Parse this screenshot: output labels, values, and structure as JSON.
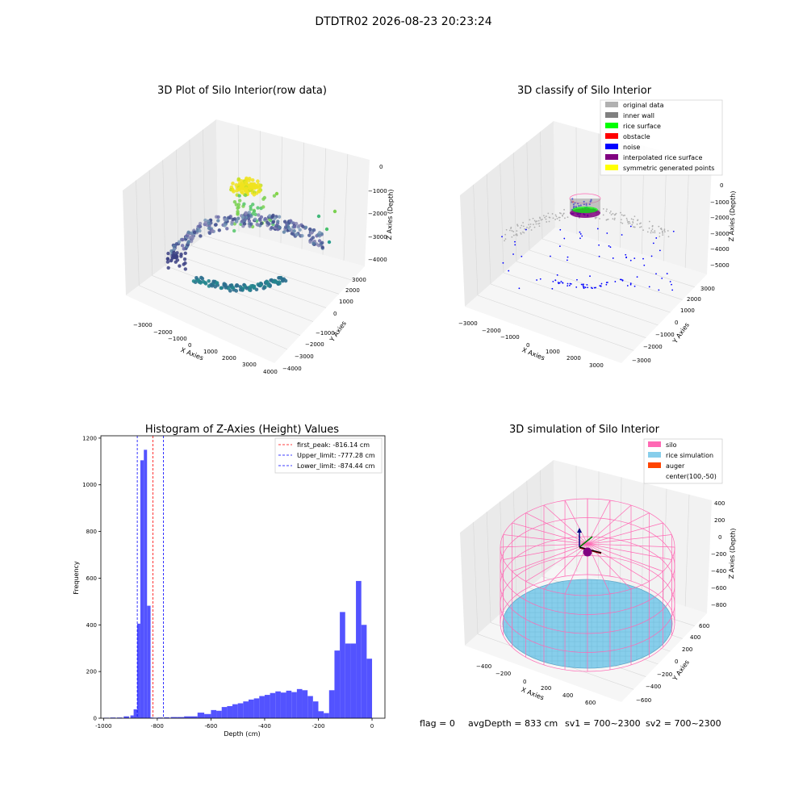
{
  "suptitle": "DTDTR02 2026-08-23 20:23:24",
  "footer": {
    "flag": "flag = 0",
    "avg_depth": "avgDepth = 833 cm",
    "sv1": "sv1 = 700~2300",
    "sv2": "sv2 = 700~2300"
  },
  "chart_data": [
    {
      "type": "scatter",
      "title": "3D Plot of Silo Interior(row data)",
      "xlabel": "X Axies",
      "ylabel": "Y Axies",
      "zlabel": "Z Axies (Depth)",
      "x_ticks": [
        "−3000",
        "−2000",
        "−1000",
        "0",
        "1000",
        "2000",
        "3000",
        "4000"
      ],
      "y_ticks": [
        "−4000",
        "−3000",
        "−2000",
        "−1000",
        "0",
        "1000",
        "2000",
        "3000"
      ],
      "z_ticks": [
        "0",
        "−1000",
        "−2000",
        "−3000",
        "−4000"
      ],
      "colormap": [
        "#fde725",
        "#7ad151",
        "#22a884",
        "#2a788e",
        "#414487",
        "#440154"
      ],
      "groups": [
        {
          "desc": "surface cluster",
          "z_range": [
            -900,
            -300
          ],
          "color": "#e6e11a"
        },
        {
          "desc": "falling points",
          "z_range": [
            -2200,
            -1000
          ],
          "color": "#86d549"
        },
        {
          "desc": "wall arc",
          "z_range": [
            -3200,
            -2400
          ],
          "color": "#7d7fb0"
        },
        {
          "desc": "bottom ring",
          "z_range": [
            -4400,
            -3800
          ],
          "color": "#2c6f8e"
        }
      ]
    },
    {
      "type": "scatter",
      "title": "3D classify of Silo Interior",
      "xlabel": "X Axies",
      "ylabel": "Y Axies",
      "zlabel": "Z Axies (Depth)",
      "x_ticks": [
        "−3000",
        "−2000",
        "−1000",
        "0",
        "1000",
        "2000",
        "3000"
      ],
      "y_ticks": [
        "−3000",
        "−2000",
        "−1000",
        "0",
        "1000",
        "2000",
        "3000"
      ],
      "z_ticks": [
        "0",
        "−1000",
        "−2000",
        "−3000",
        "−4000",
        "−5000"
      ],
      "legend": [
        {
          "label": "original data",
          "color": "#b0b0b0"
        },
        {
          "label": "inner wall",
          "color": "#808080"
        },
        {
          "label": "rice surface",
          "color": "#00ff00"
        },
        {
          "label": "obstacle",
          "color": "#ff0000"
        },
        {
          "label": "noise",
          "color": "#0000ff"
        },
        {
          "label": "interpolated rice surface",
          "color": "#800080"
        },
        {
          "label": "symmetric generated points",
          "color": "#ffff00"
        }
      ],
      "legend_location": "upper right"
    },
    {
      "type": "bar",
      "title": "Histogram of Z-Axies (Height) Values",
      "xlabel": "Depth (cm)",
      "ylabel": "Frequency",
      "xlim": [
        -1010,
        48
      ],
      "ylim": [
        0,
        1210
      ],
      "x_ticks": [
        -1000,
        -800,
        -600,
        -400,
        -200,
        0
      ],
      "y_ticks": [
        0,
        200,
        400,
        600,
        800,
        1000,
        1200
      ],
      "bar_color": "#4a4aff",
      "bins": [
        {
          "left": -1000,
          "width": 20,
          "value": 2
        },
        {
          "left": -975,
          "width": 20,
          "value": 3
        },
        {
          "left": -950,
          "width": 20,
          "value": 3
        },
        {
          "left": -925,
          "width": 20,
          "value": 8
        },
        {
          "left": -900,
          "width": 12,
          "value": 12
        },
        {
          "left": -888,
          "width": 13,
          "value": 38
        },
        {
          "left": -875,
          "width": 12,
          "value": 405
        },
        {
          "left": -863,
          "width": 13,
          "value": 1105
        },
        {
          "left": -850,
          "width": 12,
          "value": 1150
        },
        {
          "left": -838,
          "width": 13,
          "value": 482
        },
        {
          "left": -825,
          "width": 12,
          "value": 3
        },
        {
          "left": -812,
          "width": 13,
          "value": 2
        },
        {
          "left": -799,
          "width": 20,
          "value": 3
        },
        {
          "left": -775,
          "width": 20,
          "value": 4
        },
        {
          "left": -750,
          "width": 25,
          "value": 5
        },
        {
          "left": -725,
          "width": 25,
          "value": 5
        },
        {
          "left": -700,
          "width": 25,
          "value": 8
        },
        {
          "left": -675,
          "width": 25,
          "value": 8
        },
        {
          "left": -650,
          "width": 25,
          "value": 24
        },
        {
          "left": -625,
          "width": 25,
          "value": 18
        },
        {
          "left": -600,
          "width": 20,
          "value": 35
        },
        {
          "left": -580,
          "width": 20,
          "value": 32
        },
        {
          "left": -560,
          "width": 20,
          "value": 48
        },
        {
          "left": -540,
          "width": 20,
          "value": 52
        },
        {
          "left": -520,
          "width": 20,
          "value": 60
        },
        {
          "left": -500,
          "width": 20,
          "value": 64
        },
        {
          "left": -480,
          "width": 20,
          "value": 72
        },
        {
          "left": -460,
          "width": 20,
          "value": 80
        },
        {
          "left": -440,
          "width": 20,
          "value": 85
        },
        {
          "left": -420,
          "width": 20,
          "value": 95
        },
        {
          "left": -400,
          "width": 20,
          "value": 100
        },
        {
          "left": -380,
          "width": 20,
          "value": 108
        },
        {
          "left": -360,
          "width": 20,
          "value": 115
        },
        {
          "left": -340,
          "width": 20,
          "value": 110
        },
        {
          "left": -320,
          "width": 20,
          "value": 118
        },
        {
          "left": -300,
          "width": 20,
          "value": 112
        },
        {
          "left": -280,
          "width": 20,
          "value": 125
        },
        {
          "left": -260,
          "width": 20,
          "value": 120
        },
        {
          "left": -240,
          "width": 20,
          "value": 95
        },
        {
          "left": -220,
          "width": 20,
          "value": 72
        },
        {
          "left": -200,
          "width": 20,
          "value": 30
        },
        {
          "left": -180,
          "width": 20,
          "value": 22
        },
        {
          "left": -160,
          "width": 20,
          "value": 120
        },
        {
          "left": -140,
          "width": 20,
          "value": 290
        },
        {
          "left": -120,
          "width": 20,
          "value": 455
        },
        {
          "left": -100,
          "width": 20,
          "value": 320
        },
        {
          "left": -80,
          "width": 20,
          "value": 320
        },
        {
          "left": -60,
          "width": 20,
          "value": 588
        },
        {
          "left": -40,
          "width": 20,
          "value": 400
        },
        {
          "left": -20,
          "width": 20,
          "value": 255
        }
      ],
      "vlines": [
        {
          "x": -816.14,
          "color": "#ff0000",
          "label": "first_peak: -816.14 cm"
        },
        {
          "x": -777.28,
          "color": "#0000ff",
          "label": "Upper_limit: -777.28 cm"
        },
        {
          "x": -874.44,
          "color": "#0000ff",
          "label": "Lower_limit: -874.44 cm"
        }
      ],
      "legend_location": "upper right"
    },
    {
      "type": "scatter",
      "title": "3D simulation of Silo Interior",
      "xlabel": "X Axies",
      "ylabel": "Y Axies",
      "zlabel": "Z Axies (Depth)",
      "x_ticks": [
        "−400",
        "−200",
        "0",
        "200",
        "400",
        "600"
      ],
      "y_ticks": [
        "−600",
        "−400",
        "−200",
        "0",
        "200",
        "400",
        "600"
      ],
      "z_ticks": [
        "400",
        "200",
        "0",
        "−200",
        "−400",
        "−600",
        "−800"
      ],
      "legend": [
        {
          "label": "silo",
          "color": "#ff69b4"
        },
        {
          "label": "rice simulation",
          "color": "#87ceeb"
        },
        {
          "label": "auger",
          "color": "#ff4500"
        },
        {
          "label": "center(100,-50)",
          "color": ""
        }
      ],
      "legend_location": "upper right"
    }
  ]
}
